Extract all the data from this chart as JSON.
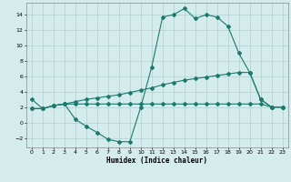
{
  "xlabel": "Humidex (Indice chaleur)",
  "bg_color": "#d5ecec",
  "grid_color": "#b8d4d4",
  "line_color": "#1a7a6e",
  "xlim": [
    -0.5,
    23.5
  ],
  "ylim": [
    -3.2,
    15.5
  ],
  "xticks": [
    0,
    1,
    2,
    3,
    4,
    5,
    6,
    7,
    8,
    9,
    10,
    11,
    12,
    13,
    14,
    15,
    16,
    17,
    18,
    19,
    20,
    21,
    22,
    23
  ],
  "yticks": [
    -2,
    0,
    2,
    4,
    6,
    8,
    10,
    12,
    14
  ],
  "line1_x": [
    0,
    1,
    2,
    3,
    4,
    5,
    6,
    7,
    8,
    9,
    10,
    11,
    12,
    13,
    14,
    15,
    16,
    17,
    18,
    19,
    20,
    21,
    22,
    23
  ],
  "line1_y": [
    3.0,
    1.8,
    2.2,
    2.4,
    0.4,
    -0.5,
    -1.3,
    -2.2,
    -2.5,
    -2.5,
    2.0,
    7.2,
    13.7,
    14.0,
    14.8,
    13.5,
    14.0,
    13.7,
    12.5,
    9.0,
    6.5,
    3.0,
    2.0,
    2.0
  ],
  "line2_x": [
    0,
    1,
    2,
    3,
    4,
    5,
    6,
    7,
    8,
    9,
    10,
    11,
    12,
    13,
    14,
    15,
    16,
    17,
    18,
    19,
    20,
    21,
    22,
    23
  ],
  "line2_y": [
    1.8,
    1.8,
    2.2,
    2.4,
    2.7,
    3.0,
    3.2,
    3.4,
    3.6,
    3.9,
    4.2,
    4.5,
    4.9,
    5.2,
    5.5,
    5.7,
    5.9,
    6.1,
    6.3,
    6.5,
    6.5,
    3.0,
    2.0,
    2.0
  ],
  "line3_x": [
    0,
    1,
    2,
    3,
    4,
    5,
    6,
    7,
    8,
    9,
    10,
    11,
    12,
    13,
    14,
    15,
    16,
    17,
    18,
    19,
    20,
    21,
    22,
    23
  ],
  "line3_y": [
    1.8,
    1.8,
    2.2,
    2.4,
    2.4,
    2.4,
    2.4,
    2.4,
    2.4,
    2.4,
    2.4,
    2.4,
    2.4,
    2.4,
    2.4,
    2.4,
    2.4,
    2.4,
    2.4,
    2.4,
    2.4,
    2.4,
    2.0,
    2.0
  ]
}
